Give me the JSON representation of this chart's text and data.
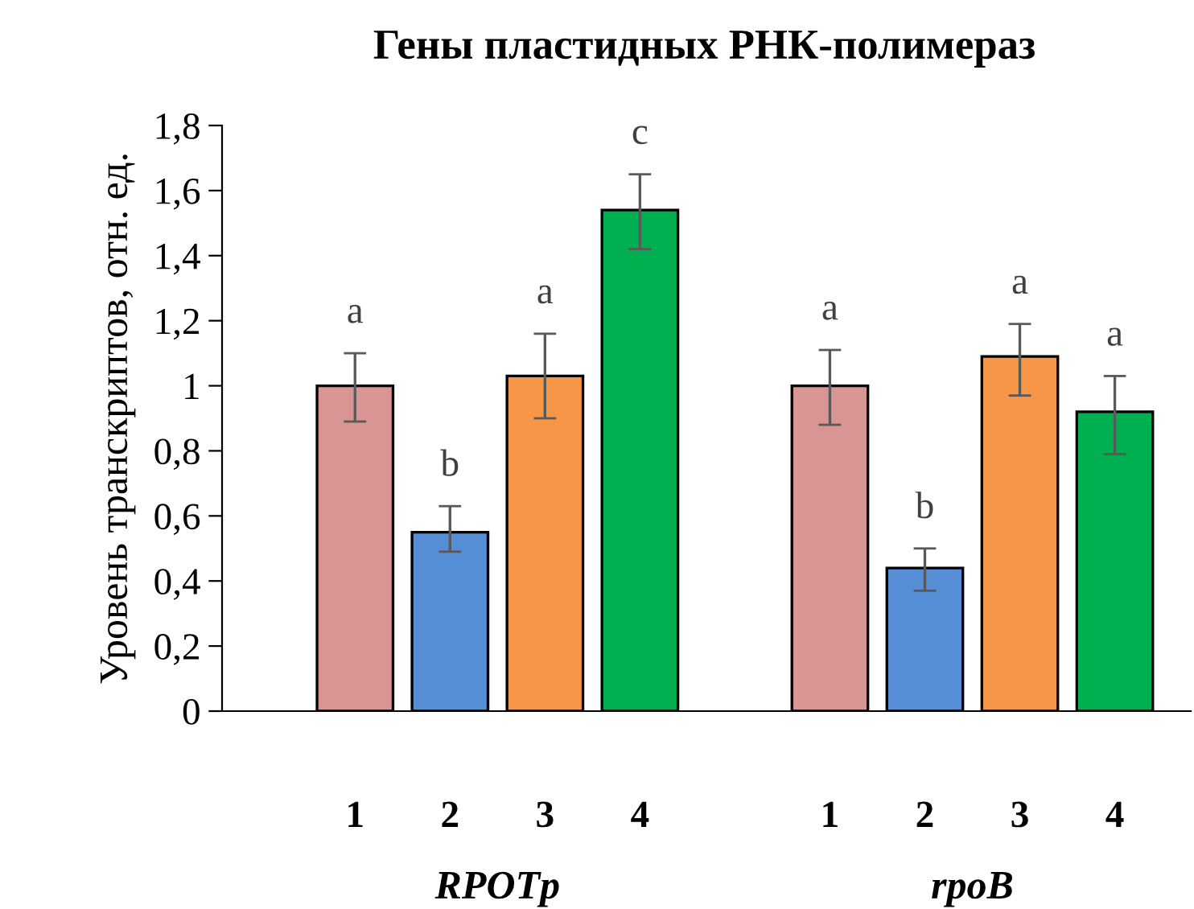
{
  "chart_data": {
    "type": "bar",
    "title": "Гены пластидных РНК-полимераз",
    "ylabel": "Уровень транскриптов, отн. ед.",
    "categories": [
      "1",
      "2",
      "3",
      "4",
      null,
      "1",
      "2",
      "3",
      "4"
    ],
    "values": [
      1.0,
      0.55,
      1.03,
      1.54,
      null,
      1.0,
      0.44,
      1.09,
      0.92
    ],
    "errors": [
      [
        0.89,
        1.1
      ],
      [
        0.49,
        0.63
      ],
      [
        0.9,
        1.16
      ],
      [
        1.42,
        1.65
      ],
      null,
      [
        0.88,
        1.11
      ],
      [
        0.37,
        0.5
      ],
      [
        0.97,
        1.19
      ],
      [
        0.79,
        1.03
      ]
    ],
    "colors": [
      "#d99594",
      "#558ed5",
      "#f79646",
      "#00b050",
      null,
      "#d99594",
      "#558ed5",
      "#f79646",
      "#00b050"
    ],
    "value_labels": [
      "a",
      "b",
      "a",
      "c",
      null,
      "a",
      "b",
      "a",
      "a"
    ],
    "annotations": [
      "RPOTp",
      "rpoB"
    ],
    "ylim": [
      0,
      1.8
    ],
    "yticks": [
      0,
      {
        "value": 0.2,
        "label": "0,2"
      },
      {
        "value": 0.4,
        "label": "0,4"
      },
      {
        "value": 0.6,
        "label": "0,6"
      },
      {
        "value": 0.8,
        "label": "0,8"
      },
      1,
      {
        "value": 1.2,
        "label": "1,2"
      },
      {
        "value": 1.4,
        "label": "1,4"
      },
      {
        "value": 1.6,
        "label": "1,6"
      },
      {
        "value": 1.8,
        "label": "1,8"
      }
    ],
    "grid": false,
    "legend": false
  }
}
